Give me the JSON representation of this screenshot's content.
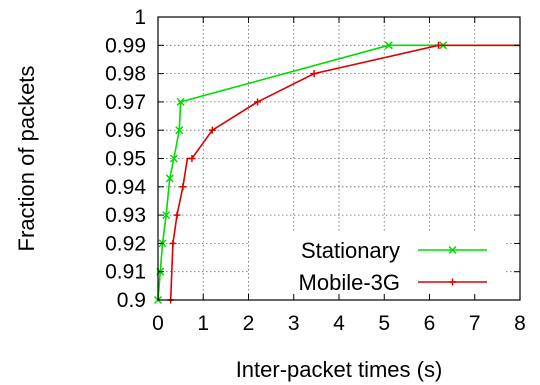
{
  "chart_data": {
    "type": "line",
    "title": "",
    "xlabel": "Inter-packet times (s)",
    "ylabel": "Fraction of packets",
    "xlim": [
      0,
      8
    ],
    "ylim": [
      0.9,
      1.0
    ],
    "x_ticks": [
      "0",
      "1",
      "2",
      "3",
      "4",
      "5",
      "6",
      "7",
      "8"
    ],
    "y_ticks": [
      "0.9",
      "0.91",
      "0.92",
      "0.93",
      "0.94",
      "0.95",
      "0.96",
      "0.97",
      "0.98",
      "0.99",
      "1"
    ],
    "grid": true,
    "legend_position": "bottom-right",
    "series": [
      {
        "name": "Stationary",
        "color": "#00dd00",
        "marker": "x",
        "x": [
          0.0,
          0.05,
          0.1,
          0.18,
          0.26,
          0.35,
          0.47,
          0.5,
          5.1,
          6.3,
          8.0
        ],
        "y": [
          0.9,
          0.91,
          0.92,
          0.93,
          0.943,
          0.95,
          0.96,
          0.97,
          0.99,
          0.99,
          0.99
        ],
        "marker_x": [
          0.0,
          0.05,
          0.1,
          0.18,
          0.26,
          0.35,
          0.47,
          0.5,
          5.1,
          6.3
        ],
        "marker_y": [
          0.9,
          0.91,
          0.92,
          0.93,
          0.943,
          0.95,
          0.96,
          0.97,
          0.99,
          0.99
        ]
      },
      {
        "name": "Mobile-3G",
        "color": "#dd0000",
        "marker": "+",
        "x": [
          0.27,
          0.28,
          0.33,
          0.42,
          0.55,
          0.65,
          0.75,
          1.2,
          2.2,
          3.45,
          6.2,
          8.0
        ],
        "y": [
          0.9,
          0.9,
          0.92,
          0.93,
          0.94,
          0.95,
          0.95,
          0.96,
          0.97,
          0.98,
          0.99,
          0.99
        ],
        "marker_x": [
          0.28,
          0.33,
          0.42,
          0.55,
          0.75,
          1.2,
          2.2,
          3.45,
          6.2
        ],
        "marker_y": [
          0.9,
          0.92,
          0.93,
          0.94,
          0.95,
          0.96,
          0.97,
          0.98,
          0.99
        ]
      }
    ]
  }
}
